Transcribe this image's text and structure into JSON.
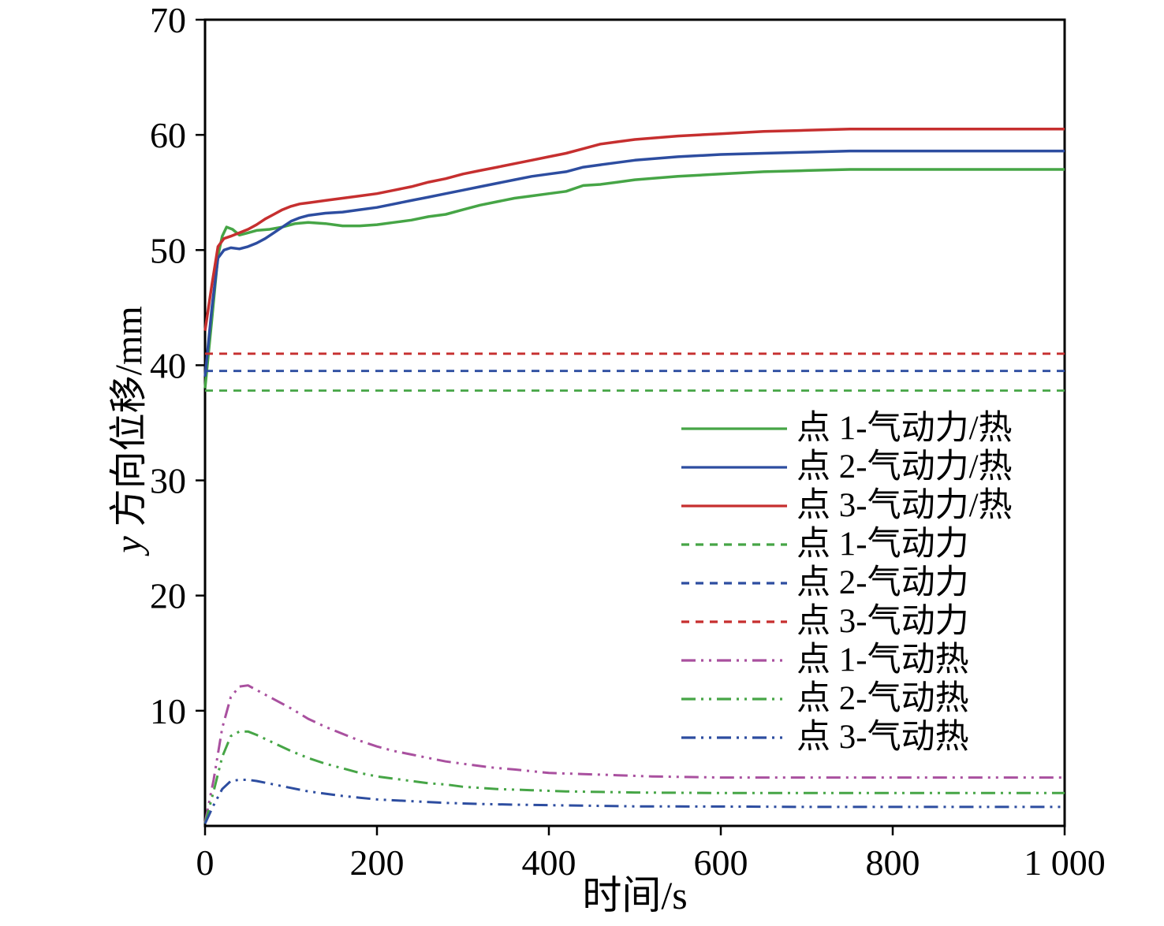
{
  "figure": {
    "background": "#ffffff"
  },
  "chart_data": {
    "type": "line",
    "title": "",
    "xlabel": "时间/s",
    "ylabel_italic": "y",
    "ylabel_rest": " 方向位移/mm",
    "xlim": [
      0,
      1000
    ],
    "ylim": [
      0,
      70
    ],
    "xtick_values": [
      0,
      200,
      400,
      600,
      800,
      1000
    ],
    "xtick_labels": [
      "0",
      "200",
      "400",
      "600",
      "800",
      "1 000"
    ],
    "ytick_values": [
      10,
      20,
      30,
      40,
      50,
      60,
      70
    ],
    "ytick_labels": [
      "10",
      "20",
      "30",
      "40",
      "50",
      "60",
      "70"
    ],
    "grid": false,
    "legend_position": "inside-right-middle",
    "axis_color": "#000000",
    "series": [
      {
        "id": "p1-aero-thermal",
        "label": "点 1-气动力/热",
        "color": "#46a546",
        "style": "solid",
        "width": 3.5,
        "points": [
          [
            0,
            38
          ],
          [
            8,
            44
          ],
          [
            15,
            49.5
          ],
          [
            20,
            51.2
          ],
          [
            25,
            52.0
          ],
          [
            32,
            51.8
          ],
          [
            40,
            51.3
          ],
          [
            50,
            51.5
          ],
          [
            60,
            51.7
          ],
          [
            75,
            51.8
          ],
          [
            90,
            52.0
          ],
          [
            105,
            52.3
          ],
          [
            120,
            52.4
          ],
          [
            140,
            52.3
          ],
          [
            160,
            52.1
          ],
          [
            180,
            52.1
          ],
          [
            200,
            52.2
          ],
          [
            220,
            52.4
          ],
          [
            240,
            52.6
          ],
          [
            260,
            52.9
          ],
          [
            280,
            53.1
          ],
          [
            300,
            53.5
          ],
          [
            320,
            53.9
          ],
          [
            340,
            54.2
          ],
          [
            360,
            54.5
          ],
          [
            380,
            54.7
          ],
          [
            400,
            54.9
          ],
          [
            420,
            55.1
          ],
          [
            440,
            55.6
          ],
          [
            460,
            55.7
          ],
          [
            480,
            55.9
          ],
          [
            500,
            56.1
          ],
          [
            550,
            56.4
          ],
          [
            600,
            56.6
          ],
          [
            650,
            56.8
          ],
          [
            700,
            56.9
          ],
          [
            750,
            57.0
          ],
          [
            800,
            57.0
          ],
          [
            900,
            57.0
          ],
          [
            1000,
            57.0
          ]
        ]
      },
      {
        "id": "p2-aero-thermal",
        "label": "点 2-气动力/热",
        "color": "#2d4da0",
        "style": "solid",
        "width": 3.5,
        "points": [
          [
            0,
            39
          ],
          [
            8,
            45
          ],
          [
            15,
            49.3
          ],
          [
            22,
            50.0
          ],
          [
            30,
            50.2
          ],
          [
            40,
            50.1
          ],
          [
            50,
            50.3
          ],
          [
            60,
            50.6
          ],
          [
            70,
            51.0
          ],
          [
            80,
            51.5
          ],
          [
            90,
            52.0
          ],
          [
            100,
            52.5
          ],
          [
            110,
            52.8
          ],
          [
            120,
            53.0
          ],
          [
            140,
            53.2
          ],
          [
            160,
            53.3
          ],
          [
            180,
            53.5
          ],
          [
            200,
            53.7
          ],
          [
            220,
            54.0
          ],
          [
            240,
            54.3
          ],
          [
            260,
            54.6
          ],
          [
            280,
            54.9
          ],
          [
            300,
            55.2
          ],
          [
            320,
            55.5
          ],
          [
            340,
            55.8
          ],
          [
            360,
            56.1
          ],
          [
            380,
            56.4
          ],
          [
            400,
            56.6
          ],
          [
            420,
            56.8
          ],
          [
            440,
            57.2
          ],
          [
            460,
            57.4
          ],
          [
            480,
            57.6
          ],
          [
            500,
            57.8
          ],
          [
            550,
            58.1
          ],
          [
            600,
            58.3
          ],
          [
            650,
            58.4
          ],
          [
            700,
            58.5
          ],
          [
            750,
            58.6
          ],
          [
            800,
            58.6
          ],
          [
            900,
            58.6
          ],
          [
            1000,
            58.6
          ]
        ]
      },
      {
        "id": "p3-aero-thermal",
        "label": "点 3-气动力/热",
        "color": "#c62f2f",
        "style": "solid",
        "width": 3.5,
        "points": [
          [
            0,
            43
          ],
          [
            8,
            47
          ],
          [
            15,
            50.3
          ],
          [
            22,
            51.0
          ],
          [
            30,
            51.2
          ],
          [
            40,
            51.5
          ],
          [
            50,
            51.8
          ],
          [
            60,
            52.2
          ],
          [
            70,
            52.7
          ],
          [
            80,
            53.1
          ],
          [
            90,
            53.5
          ],
          [
            100,
            53.8
          ],
          [
            110,
            54.0
          ],
          [
            120,
            54.1
          ],
          [
            140,
            54.3
          ],
          [
            160,
            54.5
          ],
          [
            180,
            54.7
          ],
          [
            200,
            54.9
          ],
          [
            220,
            55.2
          ],
          [
            240,
            55.5
          ],
          [
            260,
            55.9
          ],
          [
            280,
            56.2
          ],
          [
            300,
            56.6
          ],
          [
            320,
            56.9
          ],
          [
            340,
            57.2
          ],
          [
            360,
            57.5
          ],
          [
            380,
            57.8
          ],
          [
            400,
            58.1
          ],
          [
            420,
            58.4
          ],
          [
            440,
            58.8
          ],
          [
            460,
            59.2
          ],
          [
            480,
            59.4
          ],
          [
            500,
            59.6
          ],
          [
            550,
            59.9
          ],
          [
            600,
            60.1
          ],
          [
            650,
            60.3
          ],
          [
            700,
            60.4
          ],
          [
            750,
            60.5
          ],
          [
            800,
            60.5
          ],
          [
            900,
            60.5
          ],
          [
            1000,
            60.5
          ]
        ]
      },
      {
        "id": "p1-aero",
        "label": "点 1-气动力",
        "color": "#46a546",
        "style": "dashed",
        "width": 2.8,
        "points": [
          [
            0,
            37.8
          ],
          [
            1000,
            37.8
          ]
        ]
      },
      {
        "id": "p2-aero",
        "label": "点 2-气动力",
        "color": "#2d4da0",
        "style": "dashed",
        "width": 2.8,
        "points": [
          [
            0,
            39.5
          ],
          [
            1000,
            39.5
          ]
        ]
      },
      {
        "id": "p3-aero",
        "label": "点 3-气动力",
        "color": "#c62f2f",
        "style": "dashed",
        "width": 2.8,
        "points": [
          [
            0,
            41.0
          ],
          [
            1000,
            41.0
          ]
        ]
      },
      {
        "id": "p1-thermal",
        "label": "点 1-气动热",
        "color": "#a9509f",
        "style": "dashdotdot",
        "width": 3,
        "points": [
          [
            0,
            0.3
          ],
          [
            10,
            4
          ],
          [
            20,
            8.5
          ],
          [
            30,
            11.2
          ],
          [
            40,
            12.1
          ],
          [
            50,
            12.2
          ],
          [
            60,
            11.8
          ],
          [
            80,
            11.0
          ],
          [
            100,
            10.2
          ],
          [
            120,
            9.3
          ],
          [
            140,
            8.6
          ],
          [
            160,
            8.0
          ],
          [
            180,
            7.4
          ],
          [
            200,
            6.9
          ],
          [
            220,
            6.5
          ],
          [
            240,
            6.2
          ],
          [
            260,
            5.9
          ],
          [
            280,
            5.6
          ],
          [
            300,
            5.4
          ],
          [
            330,
            5.1
          ],
          [
            360,
            4.9
          ],
          [
            400,
            4.6
          ],
          [
            440,
            4.5
          ],
          [
            480,
            4.4
          ],
          [
            520,
            4.3
          ],
          [
            600,
            4.2
          ],
          [
            700,
            4.2
          ],
          [
            800,
            4.2
          ],
          [
            1000,
            4.2
          ]
        ]
      },
      {
        "id": "p2-thermal",
        "label": "点 2-气动热",
        "color": "#46a546",
        "style": "dashdotdot",
        "width": 3,
        "points": [
          [
            0,
            0.2
          ],
          [
            10,
            3
          ],
          [
            20,
            6
          ],
          [
            30,
            7.8
          ],
          [
            40,
            8.2
          ],
          [
            50,
            8.2
          ],
          [
            60,
            7.9
          ],
          [
            80,
            7.2
          ],
          [
            100,
            6.5
          ],
          [
            120,
            5.9
          ],
          [
            140,
            5.4
          ],
          [
            160,
            5.0
          ],
          [
            180,
            4.6
          ],
          [
            200,
            4.3
          ],
          [
            220,
            4.1
          ],
          [
            240,
            3.9
          ],
          [
            260,
            3.7
          ],
          [
            280,
            3.6
          ],
          [
            300,
            3.4
          ],
          [
            340,
            3.2
          ],
          [
            380,
            3.1
          ],
          [
            420,
            3.0
          ],
          [
            460,
            2.95
          ],
          [
            500,
            2.9
          ],
          [
            600,
            2.85
          ],
          [
            700,
            2.85
          ],
          [
            800,
            2.85
          ],
          [
            1000,
            2.85
          ]
        ]
      },
      {
        "id": "p3-thermal",
        "label": "点 3-气动热",
        "color": "#2d4da0",
        "style": "dashdotdot",
        "width": 3,
        "points": [
          [
            0,
            0.2
          ],
          [
            10,
            1.8
          ],
          [
            20,
            3.2
          ],
          [
            30,
            3.9
          ],
          [
            40,
            4.0
          ],
          [
            50,
            4.0
          ],
          [
            60,
            3.9
          ],
          [
            80,
            3.6
          ],
          [
            100,
            3.3
          ],
          [
            120,
            3.0
          ],
          [
            140,
            2.8
          ],
          [
            160,
            2.6
          ],
          [
            180,
            2.45
          ],
          [
            200,
            2.3
          ],
          [
            240,
            2.15
          ],
          [
            280,
            2.0
          ],
          [
            320,
            1.9
          ],
          [
            360,
            1.85
          ],
          [
            400,
            1.8
          ],
          [
            500,
            1.7
          ],
          [
            600,
            1.68
          ],
          [
            700,
            1.65
          ],
          [
            800,
            1.65
          ],
          [
            1000,
            1.65
          ]
        ]
      }
    ]
  }
}
